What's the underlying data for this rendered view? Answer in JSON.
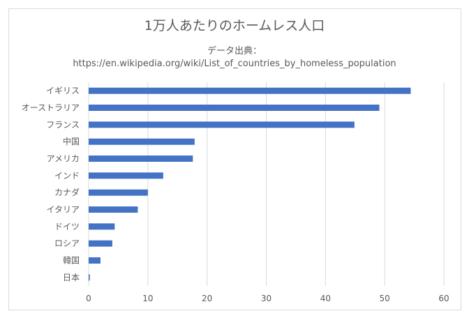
{
  "chart_data": {
    "type": "bar",
    "orientation": "horizontal",
    "title": "1万人あたりのホームレス人口",
    "subtitle_line1": "データ出典：",
    "subtitle_line2": "https://en.wikipedia.org/wiki/List_of_countries_by_homeless_population",
    "categories": [
      "イギリス",
      "オーストラリア",
      "フランス",
      "中国",
      "アメリカ",
      "インド",
      "カナダ",
      "イタリア",
      "ドイツ",
      "ロシア",
      "韓国",
      "日本"
    ],
    "values": [
      54.4,
      49.1,
      44.9,
      17.9,
      17.6,
      12.6,
      10.0,
      8.3,
      4.4,
      4.0,
      2.0,
      0.2
    ],
    "xlim": [
      0,
      60
    ],
    "xticks": [
      0,
      10,
      20,
      30,
      40,
      50,
      60
    ],
    "grid": true,
    "bar_color": "#4472c4",
    "xlabel": "",
    "ylabel": ""
  }
}
